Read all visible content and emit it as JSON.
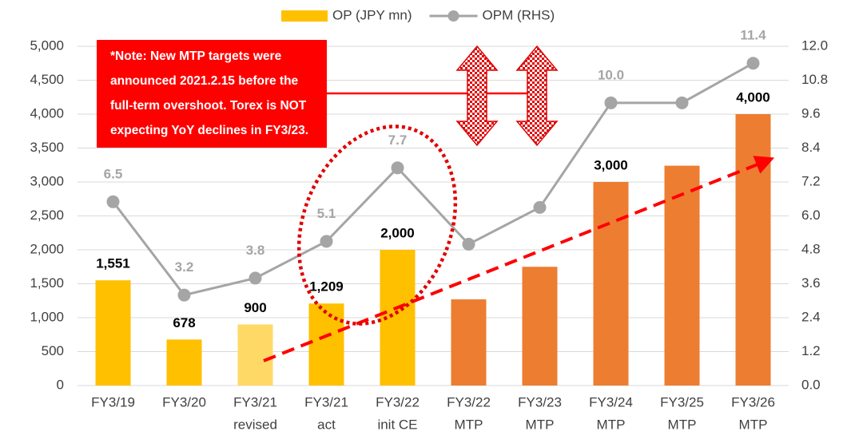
{
  "chart_data": {
    "type": "bar_line",
    "categories": [
      [
        "FY3/19"
      ],
      [
        "FY3/20"
      ],
      [
        "FY3/21",
        "revised"
      ],
      [
        "FY3/21",
        "act"
      ],
      [
        "FY3/22",
        "init CE"
      ],
      [
        "FY3/22",
        "MTP"
      ],
      [
        "FY3/23",
        "MTP"
      ],
      [
        "FY3/24",
        "MTP"
      ],
      [
        "FY3/25",
        "MTP"
      ],
      [
        "FY3/26",
        "MTP"
      ]
    ],
    "series": [
      {
        "name": "OP (JPY mn)",
        "type": "bar",
        "color": "#FFC000",
        "colors": [
          "#FFC000",
          "#FFC000",
          "#FFD966",
          "#FFC000",
          "#FFC000",
          "#ED7D31",
          "#ED7D31",
          "#ED7D31",
          "#ED7D31",
          "#ED7D31"
        ],
        "values": [
          1551,
          678,
          900,
          1209,
          2000,
          1270,
          1750,
          3000,
          3240,
          4000
        ],
        "value_labels": [
          "1,551",
          "678",
          "900",
          "1,209",
          "2,000",
          null,
          null,
          "3,000",
          null,
          "4,000"
        ]
      },
      {
        "name": "OPM (RHS)",
        "type": "line",
        "axis": "y2",
        "color": "#A5A5A5",
        "values": [
          6.5,
          3.2,
          3.8,
          5.1,
          7.7,
          5.0,
          6.3,
          10.0,
          10.0,
          11.4
        ],
        "value_labels": [
          "6.5",
          "3.2",
          "3.8",
          "5.1",
          "7.7",
          null,
          null,
          "10.0",
          null,
          "11.4"
        ]
      }
    ],
    "ylim": [
      0,
      5000
    ],
    "yticks": [
      0,
      500,
      {
        "value": 1000,
        "label": "1,000"
      },
      {
        "value": 1500,
        "label": "1,500"
      },
      {
        "value": 2000,
        "label": "2,000"
      },
      {
        "value": 2500,
        "label": "2,500"
      },
      {
        "value": 3000,
        "label": "3,000"
      },
      {
        "value": 3500,
        "label": "3,500"
      },
      {
        "value": 4000,
        "label": "4,000"
      },
      {
        "value": 4500,
        "label": "4,500"
      },
      {
        "value": 5000,
        "label": "5,000"
      }
    ],
    "y2lim": [
      0,
      12
    ],
    "y2ticks": [
      {
        "value": 0,
        "label": "0.0"
      },
      1.2,
      2.4,
      3.6,
      4.8,
      {
        "value": 6,
        "label": "6.0"
      },
      7.2,
      8.4,
      9.6,
      10.8,
      {
        "value": 12,
        "label": "12.0"
      }
    ],
    "annotation": [
      "*Note: New MTP targets were",
      "announced 2021.2.15 before the",
      "full-term overshoot. Torex is NOT",
      "expecting YoY declines in FY3/23."
    ],
    "legend": "top"
  }
}
